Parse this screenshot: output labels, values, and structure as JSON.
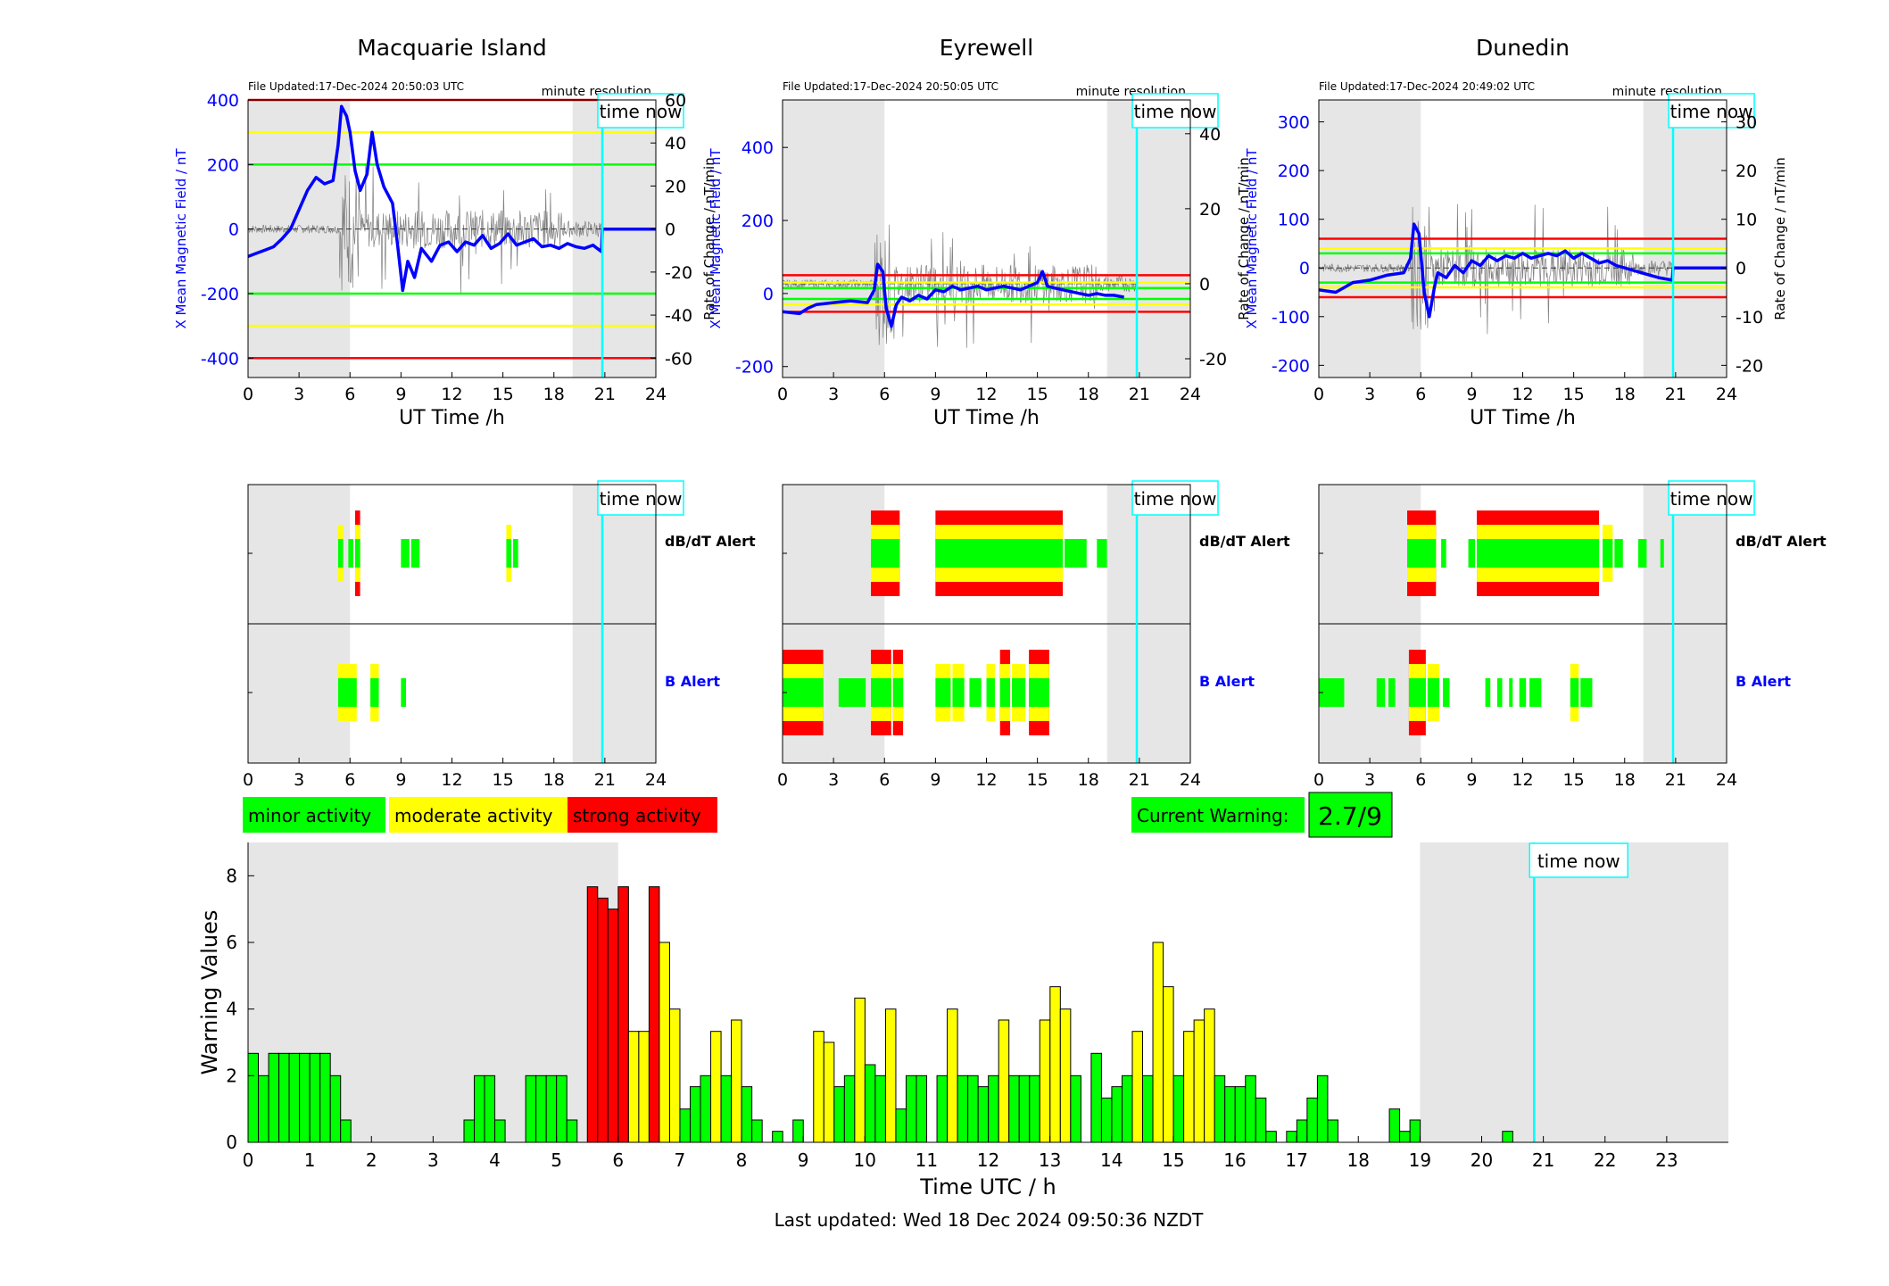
{
  "colors": {
    "minor": "#00ff00",
    "moderate": "#ffff00",
    "strong": "#ff0000",
    "night": "#e6e6e6",
    "time_now": "#00ffff",
    "field": "#0000ff",
    "rate": "#808080"
  },
  "time_now_hour": 20.85,
  "panel_labels": {
    "file_updated_prefix": "File Updated:",
    "minute_resolution": "minute resolution",
    "time_now": "time now",
    "x_axis": "UT Time /h",
    "dbdt_alert": "dB/dT Alert",
    "b_alert": "B Alert"
  },
  "stations": [
    {
      "name": "Macquarie Island",
      "file_updated": "17-Dec-2024 20:50:03 UTC",
      "left_ylabel": "X Mean Magnetic Field / nT",
      "right_ylabel": "Rate of Change / nT/min",
      "left_ylim": [
        -460,
        400
      ],
      "left_ticks": [
        -400,
        -200,
        0,
        200,
        400
      ],
      "right_ylim": [
        -69,
        60
      ],
      "right_ticks": [
        -60,
        -40,
        -20,
        0,
        20,
        40,
        60
      ],
      "show_right_label": true,
      "night": [
        [
          0,
          6
        ],
        [
          19.1,
          24
        ]
      ],
      "thresholds": [
        {
          "y": 400,
          "color": "strong"
        },
        {
          "y": 300,
          "color": "moderate"
        },
        {
          "y": 200,
          "color": "minor"
        },
        {
          "y": -200,
          "color": "minor"
        },
        {
          "y": -300,
          "color": "moderate"
        },
        {
          "y": -400,
          "color": "strong"
        }
      ],
      "field_series": [
        [
          0,
          -85
        ],
        [
          0.5,
          -75
        ],
        [
          1,
          -65
        ],
        [
          1.5,
          -55
        ],
        [
          2,
          -30
        ],
        [
          2.5,
          0
        ],
        [
          3,
          60
        ],
        [
          3.5,
          120
        ],
        [
          4,
          160
        ],
        [
          4.5,
          140
        ],
        [
          5,
          150
        ],
        [
          5.3,
          260
        ],
        [
          5.5,
          380
        ],
        [
          5.8,
          350
        ],
        [
          6,
          300
        ],
        [
          6.3,
          180
        ],
        [
          6.6,
          120
        ],
        [
          7,
          170
        ],
        [
          7.3,
          300
        ],
        [
          7.6,
          200
        ],
        [
          8,
          130
        ],
        [
          8.5,
          80
        ],
        [
          8.8,
          -50
        ],
        [
          9.1,
          -190
        ],
        [
          9.4,
          -100
        ],
        [
          9.8,
          -150
        ],
        [
          10.2,
          -60
        ],
        [
          10.8,
          -100
        ],
        [
          11.3,
          -50
        ],
        [
          11.8,
          -40
        ],
        [
          12.3,
          -70
        ],
        [
          12.8,
          -40
        ],
        [
          13.3,
          -50
        ],
        [
          13.8,
          -20
        ],
        [
          14.3,
          -60
        ],
        [
          14.8,
          -45
        ],
        [
          15.3,
          -15
        ],
        [
          15.8,
          -50
        ],
        [
          16.3,
          -40
        ],
        [
          16.8,
          -30
        ],
        [
          17.3,
          -55
        ],
        [
          17.8,
          -50
        ],
        [
          18.3,
          -60
        ],
        [
          18.8,
          -45
        ],
        [
          19.3,
          -55
        ],
        [
          19.8,
          -60
        ],
        [
          20.3,
          -50
        ],
        [
          20.8,
          -70
        ],
        [
          20.85,
          0
        ],
        [
          24,
          0
        ]
      ],
      "dbdt": [
        [
          5.3,
          5.7,
          2
        ],
        [
          5.9,
          6.3,
          1
        ],
        [
          6.3,
          6.7,
          3
        ],
        [
          9,
          9.6,
          1
        ],
        [
          9.6,
          10.2,
          1
        ],
        [
          15.2,
          15.6,
          2
        ],
        [
          15.6,
          16,
          1
        ]
      ],
      "balert": [
        [
          5.3,
          6.5,
          2
        ],
        [
          7.2,
          7.8,
          2
        ],
        [
          9,
          9.4,
          1
        ]
      ]
    },
    {
      "name": "Eyrewell",
      "file_updated": "17-Dec-2024 20:50:05 UTC",
      "left_ylabel": "X Mean Magnetic Field / nT",
      "right_ylabel": "Rate of Change / nT/min",
      "left_ylim": [
        -230,
        530
      ],
      "left_ticks": [
        -200,
        0,
        200,
        400
      ],
      "right_ylim": [
        -25,
        49
      ],
      "right_ticks": [
        -20,
        0,
        20,
        40
      ],
      "show_right_label": true,
      "night": [
        [
          0,
          6
        ],
        [
          19.1,
          24
        ]
      ],
      "thresholds": [
        {
          "y": 50,
          "color": "strong"
        },
        {
          "y": 30,
          "color": "moderate"
        },
        {
          "y": 15,
          "color": "minor"
        },
        {
          "y": -15,
          "color": "minor"
        },
        {
          "y": -30,
          "color": "moderate"
        },
        {
          "y": -50,
          "color": "strong"
        }
      ],
      "field_series": [
        [
          0,
          -50
        ],
        [
          1,
          -55
        ],
        [
          1.5,
          -40
        ],
        [
          2,
          -30
        ],
        [
          3,
          -25
        ],
        [
          4,
          -20
        ],
        [
          5,
          -25
        ],
        [
          5.4,
          10
        ],
        [
          5.6,
          80
        ],
        [
          5.9,
          60
        ],
        [
          6.1,
          -40
        ],
        [
          6.4,
          -90
        ],
        [
          6.7,
          -30
        ],
        [
          7,
          -10
        ],
        [
          7.5,
          -20
        ],
        [
          8,
          -5
        ],
        [
          8.5,
          -15
        ],
        [
          9,
          10
        ],
        [
          9.5,
          5
        ],
        [
          10,
          20
        ],
        [
          10.5,
          10
        ],
        [
          11,
          15
        ],
        [
          11.5,
          20
        ],
        [
          12,
          10
        ],
        [
          12.5,
          15
        ],
        [
          13,
          20
        ],
        [
          13.5,
          15
        ],
        [
          14,
          10
        ],
        [
          14.5,
          20
        ],
        [
          15,
          30
        ],
        [
          15.3,
          60
        ],
        [
          15.6,
          20
        ],
        [
          16,
          15
        ],
        [
          16.5,
          10
        ],
        [
          17,
          5
        ],
        [
          17.5,
          0
        ],
        [
          18,
          -5
        ],
        [
          18.5,
          0
        ],
        [
          19,
          -5
        ],
        [
          19.5,
          -5
        ],
        [
          20.1,
          -10
        ]
      ],
      "dbdt": [
        [
          5.2,
          7,
          3
        ],
        [
          9,
          16.6,
          3
        ],
        [
          16.6,
          18,
          1
        ],
        [
          18.5,
          19.2,
          1
        ]
      ],
      "balert": [
        [
          0,
          2.5,
          3
        ],
        [
          3.3,
          5,
          1
        ],
        [
          5.2,
          6.5,
          3
        ],
        [
          6.5,
          7.2,
          3
        ],
        [
          9,
          10,
          2
        ],
        [
          10,
          10.8,
          2
        ],
        [
          11,
          11.8,
          1
        ],
        [
          12,
          12.6,
          2
        ],
        [
          12.8,
          13.5,
          3
        ],
        [
          13.5,
          14.4,
          2
        ],
        [
          14.5,
          15.8,
          3
        ]
      ]
    },
    {
      "name": "Dunedin",
      "file_updated": "17-Dec-2024 20:49:02 UTC",
      "left_ylabel": "X Mean Magnetic Field / nT",
      "right_ylabel": "Rate of Change / nT/min",
      "left_ylim": [
        -225,
        345
      ],
      "left_ticks": [
        -200,
        -100,
        0,
        100,
        200,
        300
      ],
      "right_ylim": [
        -22.5,
        34.5
      ],
      "right_ticks": [
        -20,
        -10,
        0,
        10,
        20,
        30
      ],
      "show_right_label": true,
      "night": [
        [
          0,
          6
        ],
        [
          19.1,
          24
        ]
      ],
      "thresholds": [
        {
          "y": 60,
          "color": "strong"
        },
        {
          "y": 40,
          "color": "moderate"
        },
        {
          "y": 30,
          "color": "minor"
        },
        {
          "y": -30,
          "color": "minor"
        },
        {
          "y": -40,
          "color": "moderate"
        },
        {
          "y": -60,
          "color": "strong"
        }
      ],
      "field_series": [
        [
          0,
          -45
        ],
        [
          1,
          -50
        ],
        [
          1.5,
          -40
        ],
        [
          2,
          -30
        ],
        [
          3,
          -25
        ],
        [
          4,
          -15
        ],
        [
          5,
          -10
        ],
        [
          5.4,
          20
        ],
        [
          5.6,
          90
        ],
        [
          5.9,
          70
        ],
        [
          6.2,
          -50
        ],
        [
          6.5,
          -100
        ],
        [
          6.8,
          -40
        ],
        [
          7,
          -10
        ],
        [
          7.5,
          -20
        ],
        [
          8,
          5
        ],
        [
          8.5,
          -10
        ],
        [
          9,
          15
        ],
        [
          9.5,
          5
        ],
        [
          10,
          25
        ],
        [
          10.5,
          15
        ],
        [
          11,
          25
        ],
        [
          11.5,
          20
        ],
        [
          12,
          30
        ],
        [
          12.5,
          20
        ],
        [
          13,
          25
        ],
        [
          13.5,
          30
        ],
        [
          14,
          25
        ],
        [
          14.5,
          35
        ],
        [
          15,
          20
        ],
        [
          15.5,
          30
        ],
        [
          16,
          20
        ],
        [
          16.5,
          10
        ],
        [
          17,
          15
        ],
        [
          17.5,
          5
        ],
        [
          18,
          0
        ],
        [
          18.5,
          -5
        ],
        [
          19,
          -10
        ],
        [
          19.5,
          -15
        ],
        [
          20,
          -20
        ],
        [
          20.8,
          -25
        ],
        [
          20.85,
          0
        ],
        [
          24,
          0
        ]
      ],
      "dbdt": [
        [
          5.2,
          7,
          3
        ],
        [
          7.2,
          7.6,
          1
        ],
        [
          8.8,
          9.3,
          1
        ],
        [
          9.3,
          16.6,
          3
        ],
        [
          16.7,
          17.4,
          2
        ],
        [
          17.4,
          18,
          1
        ],
        [
          18.8,
          19.4,
          1
        ],
        [
          20.1,
          20.4,
          1
        ]
      ],
      "balert": [
        [
          0,
          1.6,
          1
        ],
        [
          3.4,
          4,
          1
        ],
        [
          4.1,
          4.6,
          1
        ],
        [
          5.3,
          6.4,
          3
        ],
        [
          6.4,
          7.2,
          2
        ],
        [
          7.3,
          7.8,
          1
        ],
        [
          9.8,
          10.2,
          1
        ],
        [
          10.5,
          10.9,
          1
        ],
        [
          11.2,
          11.5,
          1
        ],
        [
          11.8,
          12.3,
          1
        ],
        [
          12.4,
          13.2,
          1
        ],
        [
          14.8,
          15.4,
          2
        ],
        [
          15.4,
          16.2,
          1
        ]
      ]
    }
  ],
  "legend": {
    "minor": "minor activity",
    "moderate": "moderate activity",
    "strong": "strong activity"
  },
  "current_warning": {
    "label": "Current Warning:",
    "value": "2.7/9"
  },
  "chart_data": {
    "type": "bar",
    "ylabel": "Warning Values",
    "xlabel": "Time UTC / h",
    "ylim": [
      0,
      9
    ],
    "yticks": [
      0,
      2,
      4,
      6,
      8
    ],
    "xlim": [
      0,
      24
    ],
    "xticks": [
      0,
      1,
      2,
      3,
      4,
      5,
      6,
      7,
      8,
      9,
      10,
      11,
      12,
      13,
      14,
      15,
      16,
      17,
      18,
      19,
      20,
      21,
      22,
      23
    ],
    "night": [
      [
        0,
        6
      ],
      [
        19,
        24
      ]
    ],
    "bin_hours": 0.1667,
    "values": [
      2.67,
      2,
      2.67,
      2.67,
      2.67,
      2.67,
      2.67,
      2.67,
      2,
      0.67,
      0,
      0,
      0,
      0,
      0,
      0,
      0,
      0,
      0,
      0,
      0,
      0.67,
      2,
      2,
      0.67,
      0,
      0,
      2,
      2,
      2,
      2,
      0.67,
      0,
      7.67,
      7.33,
      7,
      7.67,
      3.33,
      3.33,
      7.67,
      6,
      4,
      1,
      1.67,
      2,
      3.33,
      2,
      3.67,
      1.67,
      0.67,
      0,
      0.33,
      0,
      0.67,
      0,
      3.33,
      3,
      1.67,
      2,
      4.33,
      2.33,
      2,
      4,
      1,
      2,
      2,
      0,
      2,
      4,
      2,
      2,
      1.67,
      2,
      3.67,
      2,
      2,
      2,
      3.67,
      4.67,
      4,
      2,
      0,
      2.67,
      1.33,
      1.67,
      2,
      3.33,
      2,
      6,
      4.67,
      2,
      3.33,
      3.67,
      4,
      2,
      1.67,
      1.67,
      2,
      1.33,
      0.33,
      0,
      0.33,
      0.67,
      1.33,
      2,
      0.67,
      0,
      0,
      0,
      0,
      0,
      1,
      0.33,
      0.67,
      0,
      0,
      0,
      0,
      0,
      0,
      0,
      0,
      0.33,
      0,
      0,
      0,
      0,
      0,
      0,
      0,
      0,
      0,
      0,
      0,
      0,
      0,
      0,
      0,
      0,
      0,
      0,
      0
    ],
    "thresholds": {
      "moderate": 3,
      "strong": 7
    }
  },
  "footer": {
    "last_updated": "Last updated: Wed 18 Dec 2024 09:50:36 NZDT"
  }
}
